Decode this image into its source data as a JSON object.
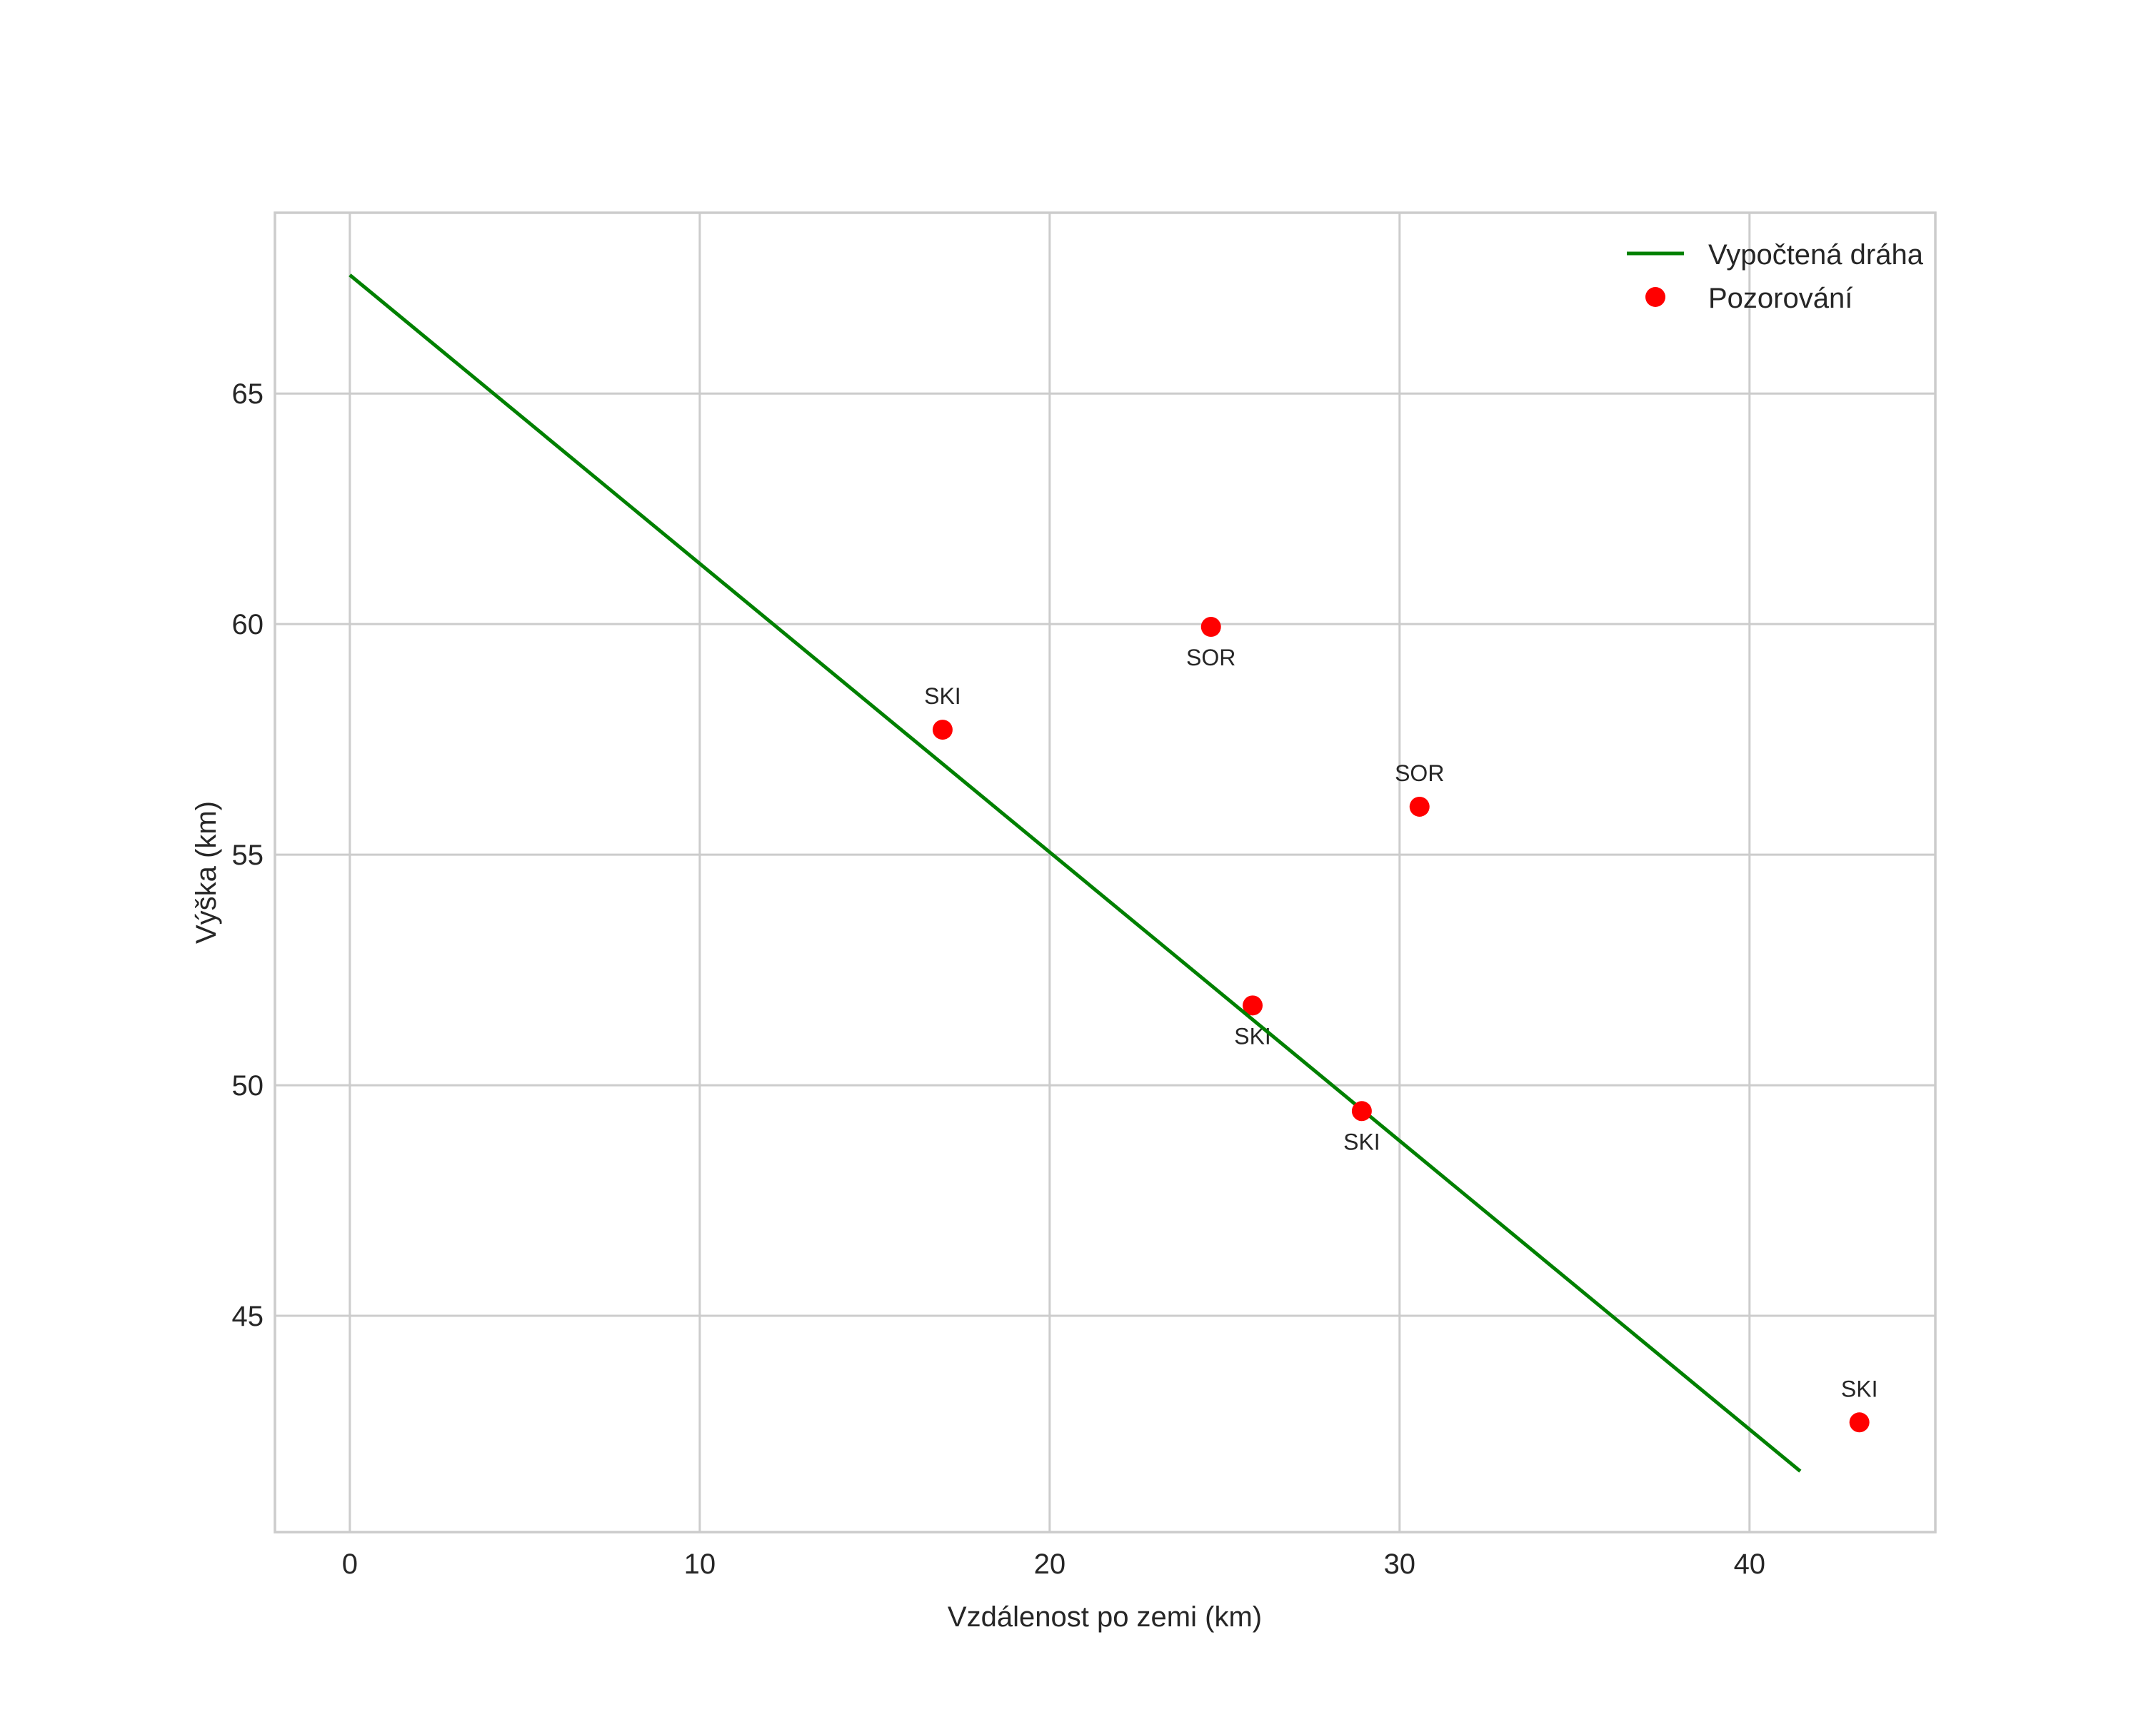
{
  "chart_data": {
    "type": "line",
    "title": "",
    "xlabel": "Vzdálenost po zemi (km)",
    "ylabel": "Výška (km)",
    "xlim": [
      -2.14,
      45.31
    ],
    "ylim": [
      40.31,
      68.92
    ],
    "grid": true,
    "legend_position": "upper right",
    "x_ticks": [
      0,
      10,
      20,
      30,
      40
    ],
    "y_ticks": [
      45,
      50,
      55,
      60,
      65
    ],
    "series": [
      {
        "name": "Vypočtená dráha",
        "type": "line",
        "color": "#008000",
        "x": [
          0,
          41.45
        ],
        "y": [
          67.57,
          41.63
        ]
      },
      {
        "name": "Pozorování",
        "type": "scatter",
        "color": "#ff0000",
        "points": [
          {
            "x": 16.94,
            "y": 57.71,
            "label": "SKI",
            "label_pos": "above"
          },
          {
            "x": 24.61,
            "y": 59.94,
            "label": "SOR",
            "label_pos": "below"
          },
          {
            "x": 30.57,
            "y": 56.04,
            "label": "SOR",
            "label_pos": "above"
          },
          {
            "x": 25.8,
            "y": 51.73,
            "label": "SKI",
            "label_pos": "below"
          },
          {
            "x": 28.92,
            "y": 49.44,
            "label": "SKI",
            "label_pos": "below"
          },
          {
            "x": 43.14,
            "y": 42.69,
            "label": "SKI",
            "label_pos": "above"
          }
        ]
      }
    ]
  },
  "legend": {
    "items": [
      {
        "label": "Vypočtená dráha",
        "marker": "line",
        "color": "#008000"
      },
      {
        "label": "Pozorování",
        "marker": "dot",
        "color": "#ff0000"
      }
    ]
  },
  "colors": {
    "line": "#008000",
    "points": "#ff0000",
    "grid": "#cccccc",
    "text": "#262626"
  }
}
